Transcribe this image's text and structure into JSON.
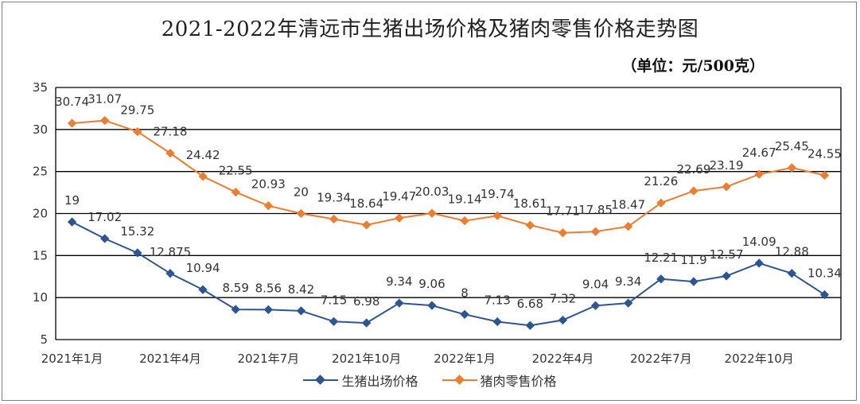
{
  "chart_data": {
    "type": "line",
    "title": "2021-2022年清远市生猪出场价格及猪肉零售价格走势图",
    "unit_label": "（单位：元/500克）",
    "ylim": [
      5,
      35
    ],
    "yticks": [
      "5",
      "10",
      "15",
      "20",
      "25",
      "30",
      "35"
    ],
    "grid": true,
    "legend_position": "bottom",
    "xtick_labels": [
      {
        "index": 0,
        "label": "2021年1月"
      },
      {
        "index": 3,
        "label": "2021年4月"
      },
      {
        "index": 6,
        "label": "2021年7月"
      },
      {
        "index": 9,
        "label": "2021年10月"
      },
      {
        "index": 12,
        "label": "2022年1月"
      },
      {
        "index": 15,
        "label": "2022年4月"
      },
      {
        "index": 18,
        "label": "2022年7月"
      },
      {
        "index": 21,
        "label": "2022年10月"
      }
    ],
    "series": [
      {
        "name": "生猪出场价格",
        "color": "#2e5593",
        "values": [
          19,
          17.02,
          15.32,
          12.875,
          10.94,
          8.59,
          8.56,
          8.42,
          7.15,
          6.98,
          9.34,
          9.06,
          8,
          7.13,
          6.68,
          7.32,
          9.04,
          9.34,
          12.21,
          11.9,
          12.57,
          14.09,
          12.88,
          10.34
        ],
        "labels": [
          "19",
          "17.02",
          "15.32",
          "12.875",
          "10.94",
          "8.59",
          "8.56",
          "8.42",
          "7.15",
          "6.98",
          "9.34",
          "9.06",
          "8",
          "7.13",
          "6.68",
          "7.32",
          "9.04",
          "9.34",
          "12.21",
          "11.9",
          "12.57",
          "14.09",
          "12.88",
          "10.34"
        ]
      },
      {
        "name": "猪肉零售价格",
        "color": "#ed7d31",
        "values": [
          30.74,
          31.07,
          29.75,
          27.18,
          24.42,
          22.55,
          20.93,
          20,
          19.34,
          18.64,
          19.47,
          20.03,
          19.14,
          19.74,
          18.61,
          17.71,
          17.85,
          18.47,
          21.26,
          22.69,
          23.19,
          24.67,
          25.45,
          24.55
        ],
        "labels": [
          "30.74",
          "31.07",
          "29.75",
          "27.18",
          "24.42",
          "22.55",
          "20.93",
          "20",
          "19.34",
          "18.64",
          "19.47",
          "20.03",
          "19.14",
          "19.74",
          "18.61",
          "17.71",
          "17.85",
          "18.47",
          "21.26",
          "22.69",
          "23.19",
          "24.67",
          "25.45",
          "24.55"
        ]
      }
    ]
  }
}
